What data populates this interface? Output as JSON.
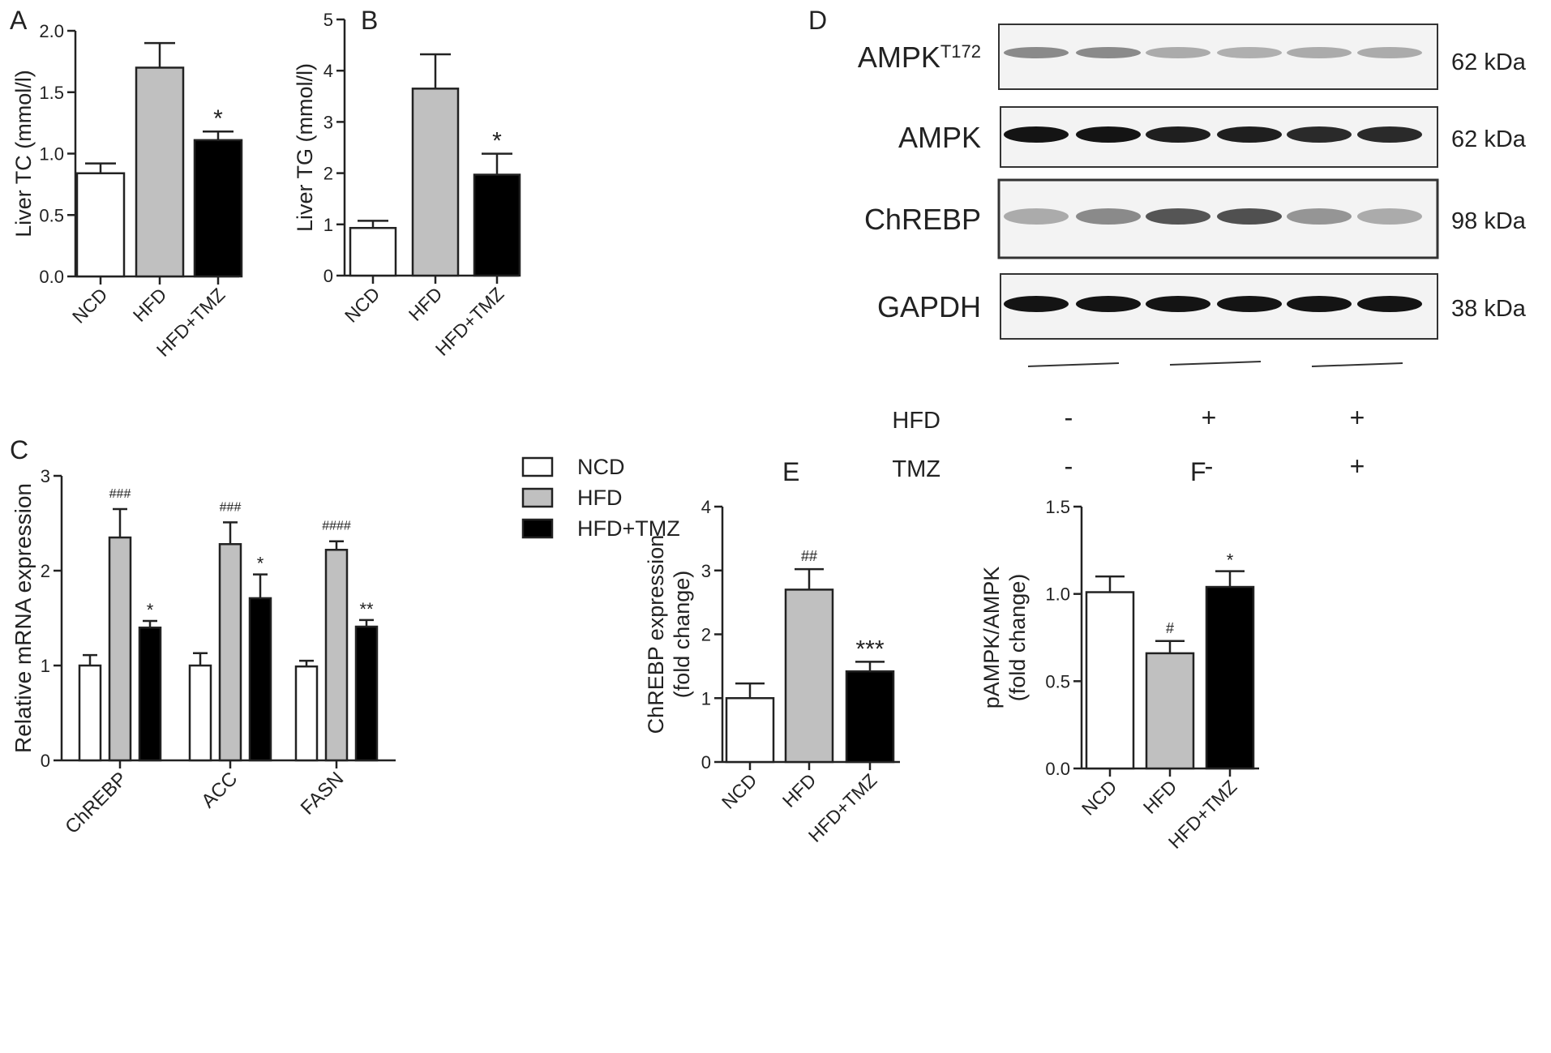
{
  "colors": {
    "NCD": "#ffffff",
    "HFD": "#c0c0c0",
    "HFD+TMZ": "#000000",
    "axis": "#222222"
  },
  "legend": {
    "entries": [
      "NCD",
      "HFD",
      "HFD+TMZ"
    ],
    "placement": "top-right of panel C"
  },
  "chart_data": [
    {
      "panel": "A",
      "type": "bar",
      "categories": [
        "NCD",
        "HFD",
        "HFD+TMZ"
      ],
      "values": [
        0.84,
        1.7,
        1.11
      ],
      "errors": [
        0.08,
        0.2,
        0.07
      ],
      "annotations": [
        "",
        "",
        "*"
      ],
      "title": "",
      "xlabel": "",
      "ylabel": "Liver TC (mmol/l)",
      "ylim": [
        0,
        2.0
      ],
      "yticks": [
        "0.0",
        "0.5",
        "1.0",
        "1.5",
        "2.0"
      ]
    },
    {
      "panel": "B",
      "type": "bar",
      "categories": [
        "NCD",
        "HFD",
        "HFD+TMZ"
      ],
      "values": [
        0.93,
        3.65,
        1.97
      ],
      "errors": [
        0.14,
        0.67,
        0.41
      ],
      "annotations": [
        "",
        "",
        "*"
      ],
      "title": "",
      "xlabel": "",
      "ylabel": "Liver TG (mmol/l)",
      "ylim": [
        0,
        5
      ],
      "yticks": [
        "0",
        "1",
        "2",
        "3",
        "4",
        "5"
      ]
    },
    {
      "panel": "C",
      "type": "bar",
      "categories": [
        "ChREBP",
        "ACC",
        "FASN"
      ],
      "series": [
        {
          "name": "NCD",
          "values": [
            1.0,
            1.0,
            0.99
          ],
          "errors": [
            0.11,
            0.13,
            0.06
          ],
          "annotations": [
            "",
            "",
            ""
          ]
        },
        {
          "name": "HFD",
          "values": [
            2.35,
            2.28,
            2.22
          ],
          "errors": [
            0.3,
            0.23,
            0.09
          ],
          "annotations": [
            "###",
            "###",
            "####"
          ]
        },
        {
          "name": "HFD+TMZ",
          "values": [
            1.4,
            1.71,
            1.41
          ],
          "errors": [
            0.07,
            0.25,
            0.07
          ],
          "annotations": [
            "*",
            "*",
            "**"
          ]
        }
      ],
      "title": "",
      "xlabel": "",
      "ylabel": "Relative mRNA  expression",
      "ylim": [
        0,
        3
      ],
      "yticks": [
        "0",
        "1",
        "2",
        "3"
      ]
    },
    {
      "panel": "E",
      "type": "bar",
      "categories": [
        "NCD",
        "HFD",
        "HFD+TMZ"
      ],
      "values": [
        1.0,
        2.7,
        1.42
      ],
      "errors": [
        0.23,
        0.32,
        0.15
      ],
      "annotations": [
        "",
        "##",
        "***"
      ],
      "title": "",
      "xlabel": "",
      "ylabel": "ChREBP expression",
      "ylabel2": "(fold change)",
      "ylim": [
        0,
        4
      ],
      "yticks": [
        "0",
        "1",
        "2",
        "3",
        "4"
      ]
    },
    {
      "panel": "F",
      "type": "bar",
      "categories": [
        "NCD",
        "HFD",
        "HFD+TMZ"
      ],
      "values": [
        1.01,
        0.66,
        1.04
      ],
      "errors": [
        0.09,
        0.07,
        0.09
      ],
      "annotations": [
        "",
        "#",
        "*"
      ],
      "title": "",
      "xlabel": "",
      "ylabel": "pAMPK/AMPK",
      "ylabel2": "(fold change)",
      "ylim": [
        0,
        1.5
      ],
      "yticks": [
        "0.0",
        "0.5",
        "1.0",
        "1.5"
      ]
    }
  ],
  "blot": {
    "panel": "D",
    "rows": [
      {
        "label": "AMPK",
        "sup": "T172",
        "size": "62 kDa",
        "bands": [
          0.45,
          0.45,
          0.3,
          0.28,
          0.3,
          0.3
        ]
      },
      {
        "label": "AMPK",
        "sup": "",
        "size": "62 kDa",
        "bands": [
          1,
          1,
          0.95,
          0.95,
          0.9,
          0.9
        ]
      },
      {
        "label": "ChREBP",
        "sup": "",
        "size": "98 kDa",
        "bands": [
          0.3,
          0.45,
          0.7,
          0.72,
          0.4,
          0.3
        ]
      },
      {
        "label": "GAPDH",
        "sup": "",
        "size": "38 kDa",
        "bands": [
          1,
          1,
          1,
          1,
          1,
          1
        ]
      }
    ],
    "conditions": [
      {
        "label": "HFD",
        "values": [
          "-",
          "+",
          "+"
        ]
      },
      {
        "label": "TMZ",
        "values": [
          "-",
          "-",
          "+"
        ]
      }
    ]
  }
}
